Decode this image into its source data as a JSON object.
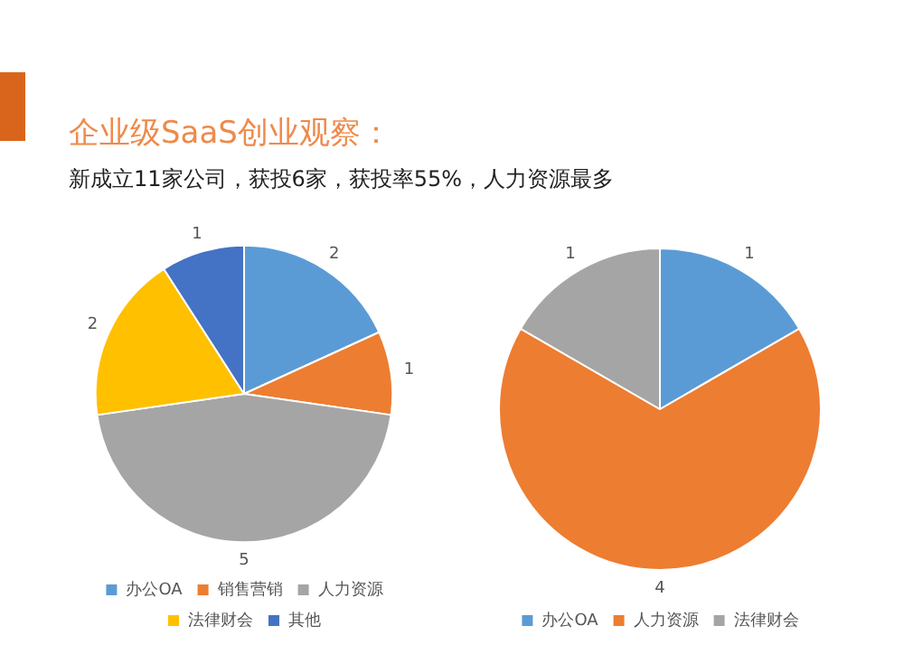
{
  "chart_data": [
    {
      "type": "pie",
      "title": "企业级SaaS创业观察：",
      "subtitle": "新成立11家公司，获投6家，获投率55%，人力资源最多",
      "categories": [
        "办公OA",
        "销售营销",
        "人力资源",
        "法律财会",
        "其他"
      ],
      "values": [
        2,
        1,
        5,
        2,
        1
      ],
      "colors": [
        "#5b9bd5",
        "#ed7d31",
        "#a5a5a5",
        "#ffc000",
        "#4472c4"
      ],
      "data_labels": true,
      "legend": "bottom"
    },
    {
      "type": "pie",
      "categories": [
        "办公OA",
        "人力资源",
        "法律财会"
      ],
      "values": [
        1,
        4,
        1
      ],
      "colors": [
        "#5b9bd5",
        "#ed7d31",
        "#a5a5a5"
      ],
      "data_labels": true,
      "legend": "bottom"
    }
  ]
}
